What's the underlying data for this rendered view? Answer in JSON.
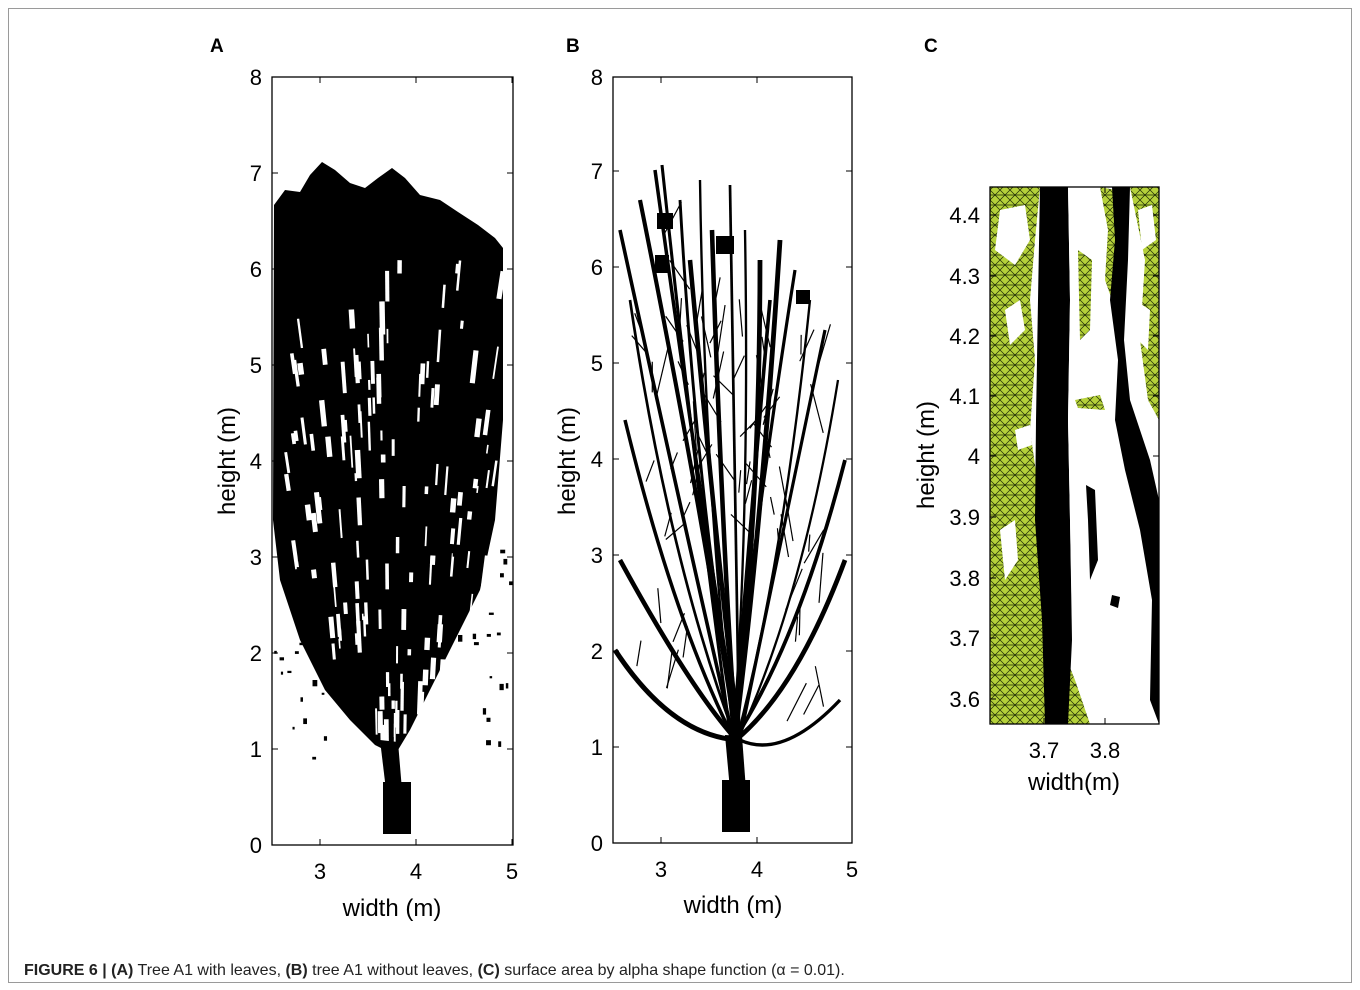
{
  "figure": {
    "caption": {
      "label": "FIGURE 6 |",
      "a_tag": "(A)",
      "a_text": " Tree A1 with leaves, ",
      "b_tag": "(B)",
      "b_text": " tree A1 without leaves, ",
      "c_tag": "(C)",
      "c_text": " surface area by alpha shape function (α = 0.01)."
    },
    "panels": [
      {
        "letter": "A",
        "xlabel": "width (m)",
        "ylabel": "height (m)",
        "xticks": [
          "3",
          "4",
          "5"
        ],
        "yticks": [
          "0",
          "1",
          "2",
          "3",
          "4",
          "5",
          "6",
          "7",
          "8"
        ]
      },
      {
        "letter": "B",
        "xlabel": "width (m)",
        "ylabel": "height (m)",
        "xticks": [
          "3",
          "4",
          "5"
        ],
        "yticks": [
          "0",
          "1",
          "2",
          "3",
          "4",
          "5",
          "6",
          "7",
          "8"
        ]
      },
      {
        "letter": "C",
        "xlabel": "width(m)",
        "ylabel": "height (m)",
        "xticks": [
          "3.7",
          "3.8"
        ],
        "yticks": [
          "3.6",
          "3.7",
          "3.8",
          "3.9",
          "4",
          "4.1",
          "4.2",
          "4.3",
          "4.4"
        ]
      }
    ]
  },
  "colors": {
    "tree": "#000000",
    "alpha_surface": "#b5d13a",
    "axis": "#000000"
  }
}
